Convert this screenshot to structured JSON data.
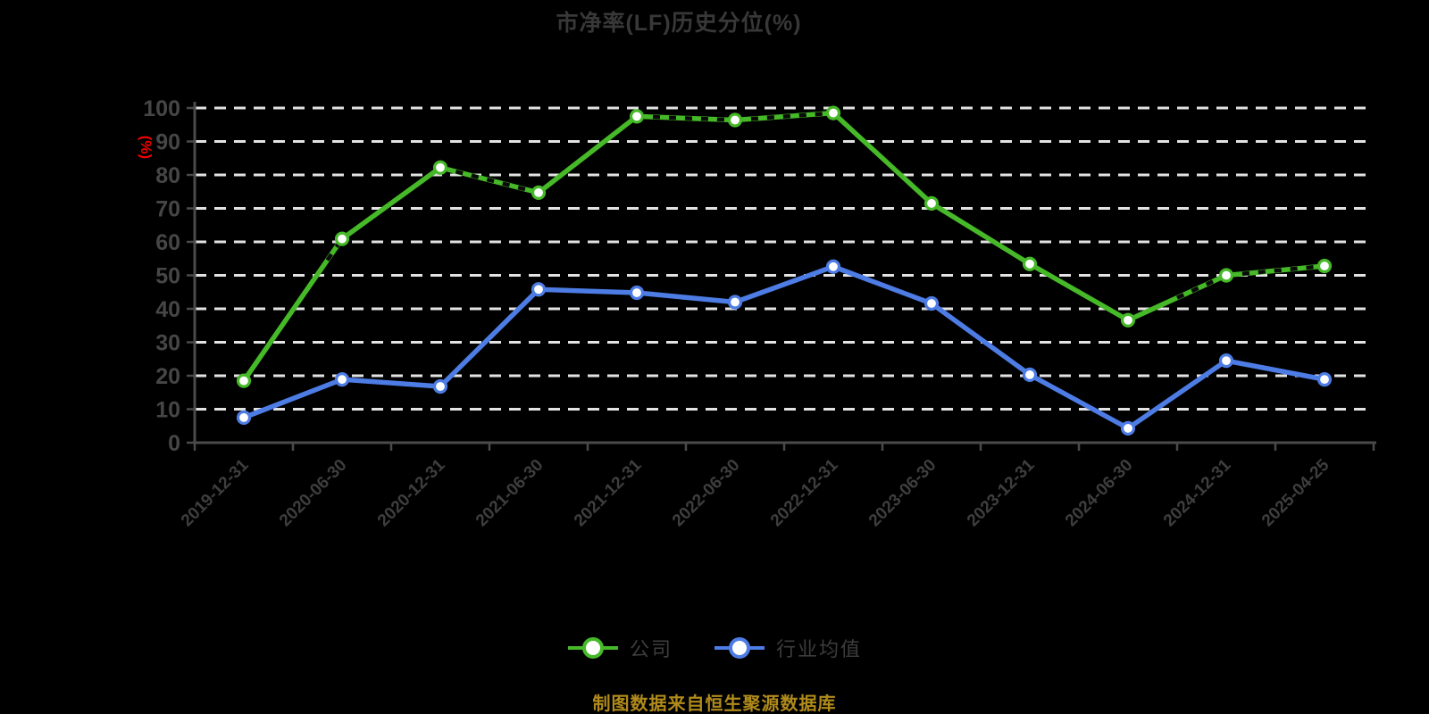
{
  "chart_data": {
    "type": "line",
    "title": "市净率(LF)历史分位(%)",
    "ylabel": "(%)",
    "caption": "制图数据来自恒生聚源数据库",
    "ylim": [
      0,
      100
    ],
    "ytick_step": 10,
    "grid": true,
    "grid_style": "dashed",
    "legend_position": "bottom",
    "categories": [
      "2019-12-31",
      "2020-06-30",
      "2020-12-31",
      "2021-06-30",
      "2021-12-31",
      "2022-06-30",
      "2022-12-31",
      "2023-06-30",
      "2023-12-31",
      "2024-06-30",
      "2024-12-31",
      "2025-04-25"
    ],
    "series": [
      {
        "name": "公司",
        "color": "#46b928",
        "values": [
          18.5,
          60.9,
          82.2,
          74.7,
          97.5,
          96.4,
          98.5,
          71.5,
          53.4,
          36.6,
          50.0,
          52.8
        ]
      },
      {
        "name": "行业均值",
        "color": "#4d7ce5",
        "values": [
          7.5,
          18.9,
          16.8,
          45.8,
          44.8,
          42.0,
          52.6,
          41.6,
          20.3,
          4.3,
          24.5,
          18.9
        ]
      }
    ],
    "colors": {
      "background": "#000000",
      "gridline": "#e3e3e3",
      "axis": "#4a4a4a",
      "y_tick_label": "#464646",
      "x_tick_label": "#3e3e3e",
      "title": "#383838",
      "ylabel": "#f00000",
      "caption": "#b08a1b",
      "legend_label": "#3d3d3d",
      "marker_fill": "#ffffff",
      "dash_overlay": "#0a0a0a"
    }
  }
}
